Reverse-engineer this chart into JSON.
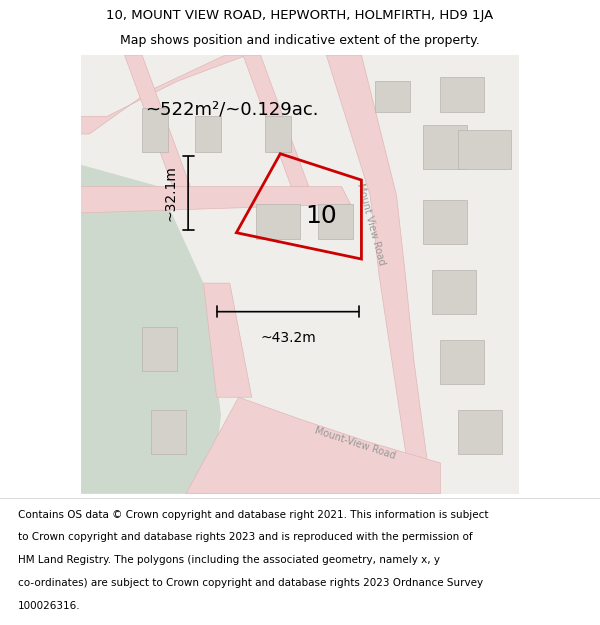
{
  "title_line1": "10, MOUNT VIEW ROAD, HEPWORTH, HOLMFIRTH, HD9 1JA",
  "title_line2": "Map shows position and indicative extent of the property.",
  "footer_lines": [
    "Contains OS data © Crown copyright and database right 2021. This information is subject",
    "to Crown copyright and database rights 2023 and is reproduced with the permission of",
    "HM Land Registry. The polygons (including the associated geometry, namely x, y",
    "co-ordinates) are subject to Crown copyright and database rights 2023 Ordnance Survey",
    "100026316."
  ],
  "area_label": "~522m²/~0.129ac.",
  "number_label": "10",
  "dim_horiz": "~43.2m",
  "dim_vert": "~32.1m",
  "road_label1": "Mount View Road",
  "road_label2": "Mount-View Road",
  "map_bg": "#f0eeeb",
  "green_area_color": "#cdd9cc",
  "red_color": "#cc0000",
  "title_fontsize": 9.5,
  "footer_fontsize": 7.5,
  "road_color": "#f0d0d0",
  "road_edge_color": "#e0b8b8",
  "building_color": "#d4d0ca",
  "building_edge": "#b8b4ae"
}
